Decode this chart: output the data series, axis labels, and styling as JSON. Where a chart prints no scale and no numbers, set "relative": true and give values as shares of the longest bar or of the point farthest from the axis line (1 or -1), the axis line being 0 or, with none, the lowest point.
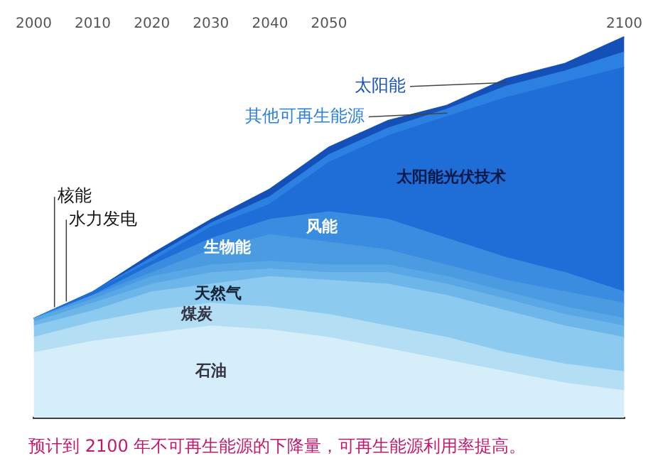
{
  "chart_data": {
    "type": "area",
    "stacked": true,
    "relative": true,
    "legend": false,
    "x": [
      2000,
      2010,
      2020,
      2030,
      2040,
      2050,
      2060,
      2070,
      2080,
      2090,
      2100
    ],
    "xlim": [
      2000,
      2100
    ],
    "xticks": [
      2000,
      2010,
      2020,
      2030,
      2040,
      2050,
      2100
    ],
    "series": [
      {
        "name": "石油",
        "color": "#d6eef9",
        "values": [
          0.17,
          0.2,
          0.22,
          0.24,
          0.23,
          0.21,
          0.18,
          0.15,
          0.12,
          0.09,
          0.07
        ]
      },
      {
        "name": "煤炭",
        "color": "#b4def3",
        "values": [
          0.04,
          0.05,
          0.06,
          0.06,
          0.06,
          0.06,
          0.06,
          0.06,
          0.05,
          0.05,
          0.05
        ]
      },
      {
        "name": "天然气",
        "color": "#8dcaef",
        "values": [
          0.03,
          0.03,
          0.05,
          0.05,
          0.08,
          0.09,
          0.11,
          0.11,
          0.11,
          0.1,
          0.09
        ]
      },
      {
        "name": "核能",
        "color": "#6db6ea",
        "values": [
          0.01,
          0.02,
          0.02,
          0.03,
          0.02,
          0.02,
          0.03,
          0.03,
          0.03,
          0.03,
          0.03
        ]
      },
      {
        "name": "水力发电",
        "color": "#5aa7e5",
        "values": [
          0.01,
          0.01,
          0.02,
          0.02,
          0.02,
          0.02,
          0.02,
          0.02,
          0.02,
          0.02,
          0.02
        ]
      },
      {
        "name": "生物能",
        "color": "#4a9be2",
        "values": [
          0.0,
          0.01,
          0.01,
          0.04,
          0.07,
          0.06,
          0.04,
          0.03,
          0.03,
          0.04,
          0.04
        ]
      },
      {
        "name": "风能",
        "color": "#3a8ce0",
        "values": [
          0.0,
          0.0,
          0.02,
          0.03,
          0.04,
          0.08,
          0.08,
          0.07,
          0.06,
          0.05,
          0.03
        ]
      },
      {
        "name": "太阳能光伏技术",
        "color": "#1f6ed8",
        "values": [
          0.0,
          0.01,
          0.01,
          0.03,
          0.04,
          0.13,
          0.22,
          0.32,
          0.42,
          0.5,
          0.59
        ]
      },
      {
        "name": "其他可再生能源",
        "color": "#2b80e2",
        "values": [
          0.0,
          0.0,
          0.01,
          0.01,
          0.02,
          0.02,
          0.02,
          0.02,
          0.03,
          0.03,
          0.04
        ]
      },
      {
        "name": "太阳能",
        "color": "#1550b8",
        "values": [
          0.0,
          0.0,
          0.01,
          0.01,
          0.02,
          0.02,
          0.02,
          0.01,
          0.02,
          0.02,
          0.04
        ]
      }
    ],
    "annotations": [
      "预计到 2100 年不可再生能源的下降量，可再生能源利用率提高。"
    ]
  }
}
